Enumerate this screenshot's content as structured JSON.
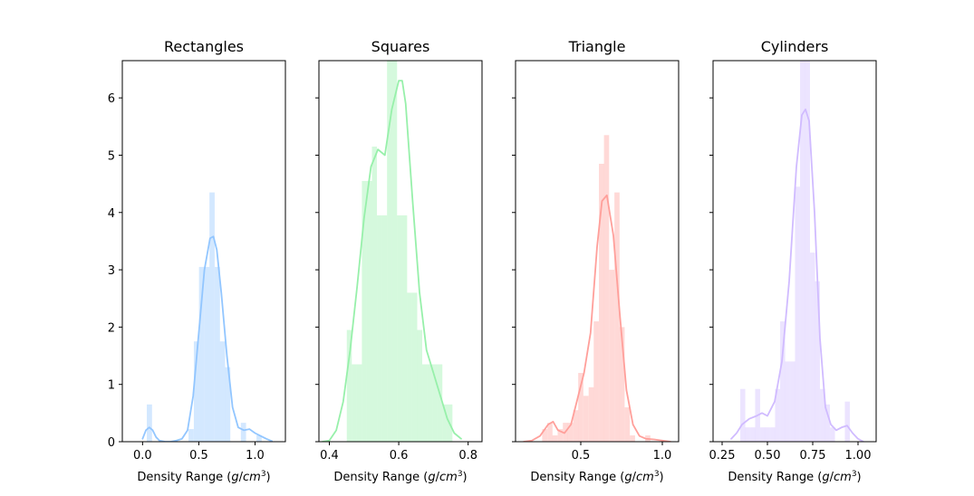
{
  "chart_data": [
    {
      "type": "bar",
      "title": "Rectangles",
      "xlabel": "Density Range (g/cm3)",
      "ylabel": "",
      "xlim": [
        -0.18,
        1.27
      ],
      "ylim": [
        0,
        6.65
      ],
      "xticks": [
        "0.0",
        "0.5",
        "1.0"
      ],
      "xtick_values": [
        0.0,
        0.5,
        1.0
      ],
      "yticks": [
        "0",
        "1",
        "2",
        "3",
        "4",
        "5",
        "6"
      ],
      "ytick_values": [
        0,
        1,
        2,
        3,
        4,
        5,
        6
      ],
      "color": "#92c6ff",
      "bin_width": 0.0464,
      "bins": [
        {
          "x": 0.061,
          "density": 0.65
        },
        {
          "x": 0.432,
          "density": 0.22
        },
        {
          "x": 0.479,
          "density": 1.75
        },
        {
          "x": 0.525,
          "density": 3.05
        },
        {
          "x": 0.572,
          "density": 3.05
        },
        {
          "x": 0.618,
          "density": 4.35
        },
        {
          "x": 0.665,
          "density": 3.05
        },
        {
          "x": 0.711,
          "density": 1.75
        },
        {
          "x": 0.757,
          "density": 1.3
        },
        {
          "x": 0.897,
          "density": 0.33
        },
        {
          "x": 1.036,
          "density": 0.11
        }
      ],
      "kde_x": [
        0.0,
        0.03,
        0.06,
        0.09,
        0.12,
        0.15,
        0.2,
        0.25,
        0.3,
        0.35,
        0.4,
        0.45,
        0.5,
        0.55,
        0.6,
        0.63,
        0.66,
        0.7,
        0.75,
        0.8,
        0.85,
        0.9,
        0.95,
        1.0,
        1.05,
        1.1,
        1.15
      ],
      "kde_y": [
        0.05,
        0.2,
        0.25,
        0.2,
        0.08,
        0.02,
        0.0,
        0.0,
        0.02,
        0.05,
        0.2,
        0.8,
        1.9,
        3.0,
        3.55,
        3.58,
        3.35,
        2.6,
        1.5,
        0.6,
        0.25,
        0.2,
        0.22,
        0.15,
        0.1,
        0.05,
        0.01
      ]
    },
    {
      "type": "bar",
      "title": "Squares",
      "xlabel": "Density Range (g/cm3)",
      "ylabel": "",
      "xlim": [
        0.37,
        0.84
      ],
      "ylim": [
        0,
        6.65
      ],
      "xticks": [
        "0.4",
        "0.6",
        "0.8"
      ],
      "xtick_values": [
        0.4,
        0.6,
        0.8
      ],
      "yticks": [],
      "ytick_values": [
        0,
        1,
        2,
        3,
        4,
        5,
        6
      ],
      "color": "#97f0aa",
      "bin_width": 0.0145,
      "bins": [
        {
          "x": 0.4575,
          "density": 1.95
        },
        {
          "x": 0.472,
          "density": 1.35
        },
        {
          "x": 0.4865,
          "density": 1.35
        },
        {
          "x": 0.501,
          "density": 4.55
        },
        {
          "x": 0.5155,
          "density": 4.55
        },
        {
          "x": 0.53,
          "density": 5.15
        },
        {
          "x": 0.5445,
          "density": 3.95
        },
        {
          "x": 0.559,
          "density": 3.95
        },
        {
          "x": 0.5735,
          "density": 6.65
        },
        {
          "x": 0.588,
          "density": 6.65
        },
        {
          "x": 0.6025,
          "density": 3.95
        },
        {
          "x": 0.617,
          "density": 3.95
        },
        {
          "x": 0.6315,
          "density": 2.6
        },
        {
          "x": 0.646,
          "density": 2.6
        },
        {
          "x": 0.6605,
          "density": 1.95
        },
        {
          "x": 0.675,
          "density": 1.35
        },
        {
          "x": 0.6895,
          "density": 1.35
        },
        {
          "x": 0.704,
          "density": 1.35
        },
        {
          "x": 0.7185,
          "density": 1.35
        },
        {
          "x": 0.733,
          "density": 0.65
        },
        {
          "x": 0.7475,
          "density": 0.65
        }
      ],
      "kde_x": [
        0.38,
        0.4,
        0.42,
        0.44,
        0.46,
        0.48,
        0.5,
        0.52,
        0.54,
        0.56,
        0.58,
        0.6,
        0.61,
        0.62,
        0.64,
        0.66,
        0.68,
        0.7,
        0.72,
        0.74,
        0.76,
        0.78
      ],
      "kde_y": [
        0.0,
        0.02,
        0.2,
        0.7,
        1.6,
        2.7,
        3.9,
        4.8,
        5.1,
        5.0,
        5.8,
        6.3,
        6.3,
        5.9,
        4.2,
        2.6,
        1.6,
        1.2,
        0.8,
        0.4,
        0.15,
        0.05
      ]
    },
    {
      "type": "bar",
      "title": "Triangle",
      "xlabel": "Density Range (g/cm3)",
      "ylabel": "",
      "xlim": [
        0.1,
        1.1
      ],
      "ylim": [
        0,
        6.65
      ],
      "xticks": [
        "0.5",
        "1.0"
      ],
      "xtick_values": [
        0.5,
        1.0
      ],
      "yticks": [],
      "ytick_values": [
        0,
        1,
        2,
        3,
        4,
        5,
        6
      ],
      "color": "#ff9f9a",
      "bin_width": 0.0316,
      "bins": [
        {
          "x": 0.279,
          "density": 0.22
        },
        {
          "x": 0.311,
          "density": 0.33
        },
        {
          "x": 0.342,
          "density": 0.11
        },
        {
          "x": 0.374,
          "density": 0.22
        },
        {
          "x": 0.406,
          "density": 0.33
        },
        {
          "x": 0.437,
          "density": 0.33
        },
        {
          "x": 0.469,
          "density": 0.55
        },
        {
          "x": 0.5,
          "density": 1.2
        },
        {
          "x": 0.532,
          "density": 0.8
        },
        {
          "x": 0.564,
          "density": 0.95
        },
        {
          "x": 0.595,
          "density": 2.1
        },
        {
          "x": 0.627,
          "density": 4.85
        },
        {
          "x": 0.658,
          "density": 5.35
        },
        {
          "x": 0.69,
          "density": 3.0
        },
        {
          "x": 0.722,
          "density": 4.35
        },
        {
          "x": 0.753,
          "density": 2.0
        },
        {
          "x": 0.785,
          "density": 0.6
        },
        {
          "x": 0.817,
          "density": 0.11
        },
        {
          "x": 0.911,
          "density": 0.11
        }
      ],
      "kde_x": [
        0.15,
        0.2,
        0.25,
        0.3,
        0.33,
        0.36,
        0.4,
        0.44,
        0.48,
        0.52,
        0.56,
        0.6,
        0.63,
        0.66,
        0.7,
        0.74,
        0.78,
        0.82,
        0.86,
        0.9,
        0.95,
        1.0,
        1.05
      ],
      "kde_y": [
        0.0,
        0.02,
        0.1,
        0.3,
        0.35,
        0.2,
        0.15,
        0.3,
        0.75,
        1.2,
        1.9,
        3.4,
        4.2,
        4.3,
        3.6,
        2.2,
        0.9,
        0.3,
        0.1,
        0.05,
        0.04,
        0.02,
        0.0
      ]
    },
    {
      "type": "bar",
      "title": "Cylinders",
      "xlabel": "Density Range (g/cm3)",
      "ylabel": "",
      "xlim": [
        0.2,
        1.1
      ],
      "ylim": [
        0,
        6.65
      ],
      "xticks": [
        "0.25",
        "0.50",
        "0.75",
        "1.00"
      ],
      "xtick_values": [
        0.25,
        0.5,
        0.75,
        1.0
      ],
      "yticks": [],
      "ytick_values": [
        0,
        1,
        2,
        3,
        4,
        5,
        6
      ],
      "color": "#d0bbff",
      "bin_width": 0.0275,
      "bins": [
        {
          "x": 0.364,
          "density": 0.92
        },
        {
          "x": 0.391,
          "density": 0.25
        },
        {
          "x": 0.419,
          "density": 0.25
        },
        {
          "x": 0.446,
          "density": 0.92
        },
        {
          "x": 0.474,
          "density": 0.25
        },
        {
          "x": 0.501,
          "density": 0.25
        },
        {
          "x": 0.529,
          "density": 0.25
        },
        {
          "x": 0.556,
          "density": 0.92
        },
        {
          "x": 0.584,
          "density": 2.1
        },
        {
          "x": 0.611,
          "density": 1.4
        },
        {
          "x": 0.639,
          "density": 1.4
        },
        {
          "x": 0.666,
          "density": 4.45
        },
        {
          "x": 0.694,
          "density": 6.65
        },
        {
          "x": 0.721,
          "density": 6.65
        },
        {
          "x": 0.749,
          "density": 3.3
        },
        {
          "x": 0.776,
          "density": 2.8
        },
        {
          "x": 0.804,
          "density": 0.92
        },
        {
          "x": 0.831,
          "density": 0.65
        },
        {
          "x": 0.859,
          "density": 0.25
        },
        {
          "x": 0.941,
          "density": 0.7
        }
      ],
      "kde_x": [
        0.3,
        0.33,
        0.36,
        0.4,
        0.44,
        0.47,
        0.5,
        0.54,
        0.58,
        0.62,
        0.66,
        0.69,
        0.71,
        0.73,
        0.76,
        0.79,
        0.82,
        0.85,
        0.88,
        0.91,
        0.94,
        0.97,
        1.0,
        1.03
      ],
      "kde_y": [
        0.05,
        0.15,
        0.3,
        0.4,
        0.45,
        0.5,
        0.45,
        0.7,
        1.4,
        2.8,
        4.8,
        5.7,
        5.8,
        5.6,
        4.0,
        1.8,
        0.6,
        0.3,
        0.2,
        0.25,
        0.28,
        0.15,
        0.05,
        0.0
      ]
    }
  ]
}
